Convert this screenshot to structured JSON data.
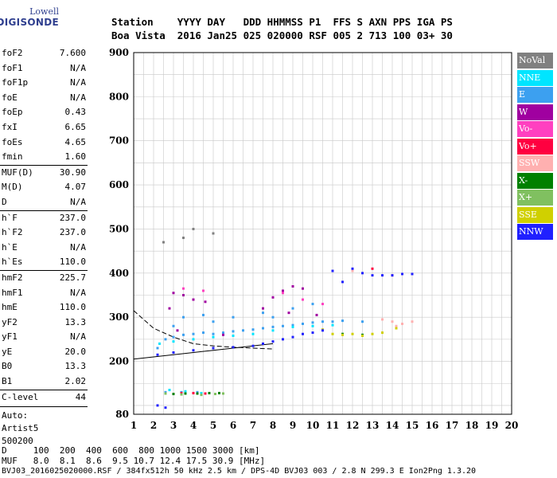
{
  "logo": {
    "line1": "Lowell",
    "line2": "DIGISONDE"
  },
  "header": {
    "row1": "Station    YYYY DAY   DDD HHMMSS P1  FFS S AXN PPS IGA PS",
    "row2": "Boa Vista  2016 Jan25 025 020000 RSF 005 2 713 100 03+ 30"
  },
  "params": [
    {
      "k": "foF2",
      "v": "7.600"
    },
    {
      "k": "foF1",
      "v": "N/A"
    },
    {
      "k": "foF1p",
      "v": "N/A"
    },
    {
      "k": "foE",
      "v": "N/A"
    },
    {
      "k": "foEp",
      "v": "0.43"
    },
    {
      "k": "fxI",
      "v": "6.65"
    },
    {
      "k": "foEs",
      "v": "4.65"
    },
    {
      "k": "fmin",
      "v": "1.60"
    },
    {
      "k": "MUF(D)",
      "v": "30.90",
      "sep": true
    },
    {
      "k": "M(D)",
      "v": "4.07"
    },
    {
      "k": "D",
      "v": "N/A"
    },
    {
      "k": "h`F",
      "v": "237.0",
      "sep": true
    },
    {
      "k": "h`F2",
      "v": "237.0"
    },
    {
      "k": "h`E",
      "v": "N/A"
    },
    {
      "k": "h`Es",
      "v": "110.0"
    },
    {
      "k": "hmF2",
      "v": "225.7",
      "sep": true
    },
    {
      "k": "hmF1",
      "v": "N/A"
    },
    {
      "k": "hmE",
      "v": "110.0"
    },
    {
      "k": "yF2",
      "v": "13.3"
    },
    {
      "k": "yF1",
      "v": "N/A"
    },
    {
      "k": "yE",
      "v": "20.0"
    },
    {
      "k": "B0",
      "v": "13.3"
    },
    {
      "k": "B1",
      "v": "2.02"
    },
    {
      "k": "C-level",
      "v": "44",
      "sep": true
    }
  ],
  "auto": [
    "Auto:",
    "Artist5",
    "500200"
  ],
  "legend": [
    {
      "label": "NoVal",
      "color": "#808080"
    },
    {
      "label": "NNE",
      "color": "#00e5ff"
    },
    {
      "label": "E",
      "color": "#3ca0f0"
    },
    {
      "label": "W",
      "color": "#a000a0"
    },
    {
      "label": "Vo-",
      "color": "#ff40c0"
    },
    {
      "label": "Vo+",
      "color": "#ff0040"
    },
    {
      "label": "SSW",
      "color": "#ffb0b0"
    },
    {
      "label": "X-",
      "color": "#008000"
    },
    {
      "label": "X+",
      "color": "#80c060"
    },
    {
      "label": "SSE",
      "color": "#d0d000"
    },
    {
      "label": "NNW",
      "color": "#2020ff"
    }
  ],
  "footer": {
    "row1": "D     100  200  400  600  800 1000 1500 3000 [km]",
    "row2": "MUF   8.0  8.1  8.6  9.5 10.7 12.4 17.5 30.9 [MHz]",
    "row3": "BVJ03_2016025020000.RSF / 384fx512h 50 kHz 2.5 km / DPS-4D BVJ03 003 / 2.8 N 299.3 E Ion2Png 1.3.20"
  },
  "chart_data": {
    "type": "scatter",
    "xlim": [
      1,
      20
    ],
    "ylim": [
      80,
      900
    ],
    "x_ticks": [
      1,
      2,
      3,
      4,
      5,
      6,
      7,
      8,
      9,
      10,
      11,
      12,
      13,
      14,
      15,
      16,
      17,
      18,
      19,
      20
    ],
    "y_ticks": [
      80,
      200,
      300,
      400,
      500,
      600,
      700,
      800,
      900
    ],
    "grid": true,
    "legend_position": "right",
    "series": [
      {
        "name": "E",
        "color": "#3ca0f0",
        "points": [
          [
            2.2,
            230
          ],
          [
            2.6,
            250
          ],
          [
            3.0,
            255
          ],
          [
            3.5,
            260
          ],
          [
            4.0,
            262
          ],
          [
            4.5,
            265
          ],
          [
            5.0,
            262
          ],
          [
            5.5,
            265
          ],
          [
            6.0,
            268
          ],
          [
            6.5,
            270
          ],
          [
            7.0,
            272
          ],
          [
            7.5,
            275
          ],
          [
            8.0,
            278
          ],
          [
            8.5,
            280
          ],
          [
            9.0,
            282
          ],
          [
            9.5,
            285
          ],
          [
            10.0,
            288
          ],
          [
            10.5,
            290
          ],
          [
            11.0,
            290
          ],
          [
            11.5,
            292
          ],
          [
            3.5,
            300
          ],
          [
            4.5,
            305
          ],
          [
            6.0,
            300
          ],
          [
            7.5,
            310
          ],
          [
            9.0,
            320
          ],
          [
            10.0,
            330
          ],
          [
            3.0,
            280
          ],
          [
            5.0,
            290
          ],
          [
            8.0,
            300
          ],
          [
            2.6,
            130
          ],
          [
            3.4,
            130
          ],
          [
            4.2,
            130
          ],
          [
            12.5,
            290
          ]
        ]
      },
      {
        "name": "NNE",
        "color": "#00e5ff",
        "points": [
          [
            2.3,
            240
          ],
          [
            3.0,
            245
          ],
          [
            4.0,
            250
          ],
          [
            5.0,
            255
          ],
          [
            6.0,
            258
          ],
          [
            7.0,
            262
          ],
          [
            8.0,
            270
          ],
          [
            9.0,
            278
          ],
          [
            10.0,
            280
          ],
          [
            11.0,
            282
          ],
          [
            2.8,
            135
          ],
          [
            3.6,
            132
          ],
          [
            4.4,
            128
          ]
        ]
      },
      {
        "name": "W",
        "color": "#a000a0",
        "points": [
          [
            3.0,
            355
          ],
          [
            3.5,
            350
          ],
          [
            4.0,
            340
          ],
          [
            4.6,
            335
          ],
          [
            2.8,
            320
          ],
          [
            7.5,
            320
          ],
          [
            8.0,
            345
          ],
          [
            8.5,
            360
          ],
          [
            9.0,
            370
          ],
          [
            9.5,
            365
          ],
          [
            3.2,
            270
          ],
          [
            5.5,
            260
          ],
          [
            8.8,
            310
          ],
          [
            10.2,
            305
          ]
        ]
      },
      {
        "name": "Vo-",
        "color": "#ff40c0",
        "points": [
          [
            3.5,
            365
          ],
          [
            4.5,
            360
          ],
          [
            8.5,
            355
          ],
          [
            9.5,
            340
          ],
          [
            10.5,
            330
          ]
        ]
      },
      {
        "name": "Vo+",
        "color": "#ff0040",
        "points": [
          [
            3.4,
            128
          ],
          [
            4.0,
            128
          ],
          [
            4.6,
            127
          ],
          [
            13.0,
            410
          ],
          [
            14.0,
            395
          ]
        ]
      },
      {
        "name": "SSW",
        "color": "#ffb0b0",
        "points": [
          [
            14.0,
            290
          ],
          [
            14.5,
            285
          ],
          [
            15.0,
            290
          ],
          [
            13.5,
            295
          ],
          [
            14.2,
            280
          ],
          [
            12.0,
            405
          ]
        ]
      },
      {
        "name": "X-",
        "color": "#008000",
        "points": [
          [
            3.0,
            126
          ],
          [
            3.6,
            127
          ],
          [
            4.2,
            127
          ],
          [
            4.8,
            128
          ],
          [
            5.3,
            128
          ],
          [
            11.5,
            262
          ],
          [
            12.5,
            260
          ]
        ]
      },
      {
        "name": "X+",
        "color": "#80c060",
        "points": [
          [
            2.6,
            127
          ],
          [
            3.4,
            125
          ],
          [
            4.4,
            124
          ],
          [
            5.1,
            126
          ],
          [
            5.5,
            127
          ]
        ]
      },
      {
        "name": "SSE",
        "color": "#d0d000",
        "points": [
          [
            11.0,
            262
          ],
          [
            11.5,
            260
          ],
          [
            12.0,
            262
          ],
          [
            12.5,
            258
          ],
          [
            13.0,
            262
          ],
          [
            13.5,
            265
          ],
          [
            14.2,
            275
          ],
          [
            10.5,
            272
          ]
        ]
      },
      {
        "name": "NNW",
        "color": "#2020ff",
        "points": [
          [
            2.2,
            215
          ],
          [
            3.0,
            220
          ],
          [
            4.0,
            225
          ],
          [
            5.0,
            230
          ],
          [
            6.0,
            232
          ],
          [
            7.0,
            235
          ],
          [
            7.5,
            240
          ],
          [
            8.0,
            245
          ],
          [
            8.5,
            250
          ],
          [
            9.0,
            255
          ],
          [
            9.5,
            262
          ],
          [
            10.0,
            265
          ],
          [
            10.5,
            270
          ],
          [
            11.0,
            405
          ],
          [
            12.0,
            410
          ],
          [
            12.5,
            400
          ],
          [
            13.0,
            395
          ],
          [
            13.5,
            395
          ],
          [
            14.0,
            395
          ],
          [
            14.5,
            398
          ],
          [
            15.0,
            398
          ],
          [
            11.5,
            380
          ],
          [
            2.2,
            100
          ],
          [
            2.6,
            95
          ]
        ]
      },
      {
        "name": "NoVal",
        "color": "#808080",
        "points": [
          [
            4.0,
            500
          ],
          [
            5.0,
            490
          ],
          [
            3.5,
            480
          ],
          [
            2.5,
            470
          ]
        ]
      }
    ],
    "profile_line": {
      "x": [
        1,
        2,
        3,
        4,
        5,
        6,
        7,
        8
      ],
      "y": [
        315,
        275,
        255,
        240,
        235,
        232,
        230,
        228
      ]
    },
    "trace_line": {
      "x": [
        1,
        2,
        3,
        4,
        5,
        6,
        7,
        8
      ],
      "y": [
        205,
        210,
        215,
        220,
        225,
        230,
        235,
        240
      ]
    }
  }
}
